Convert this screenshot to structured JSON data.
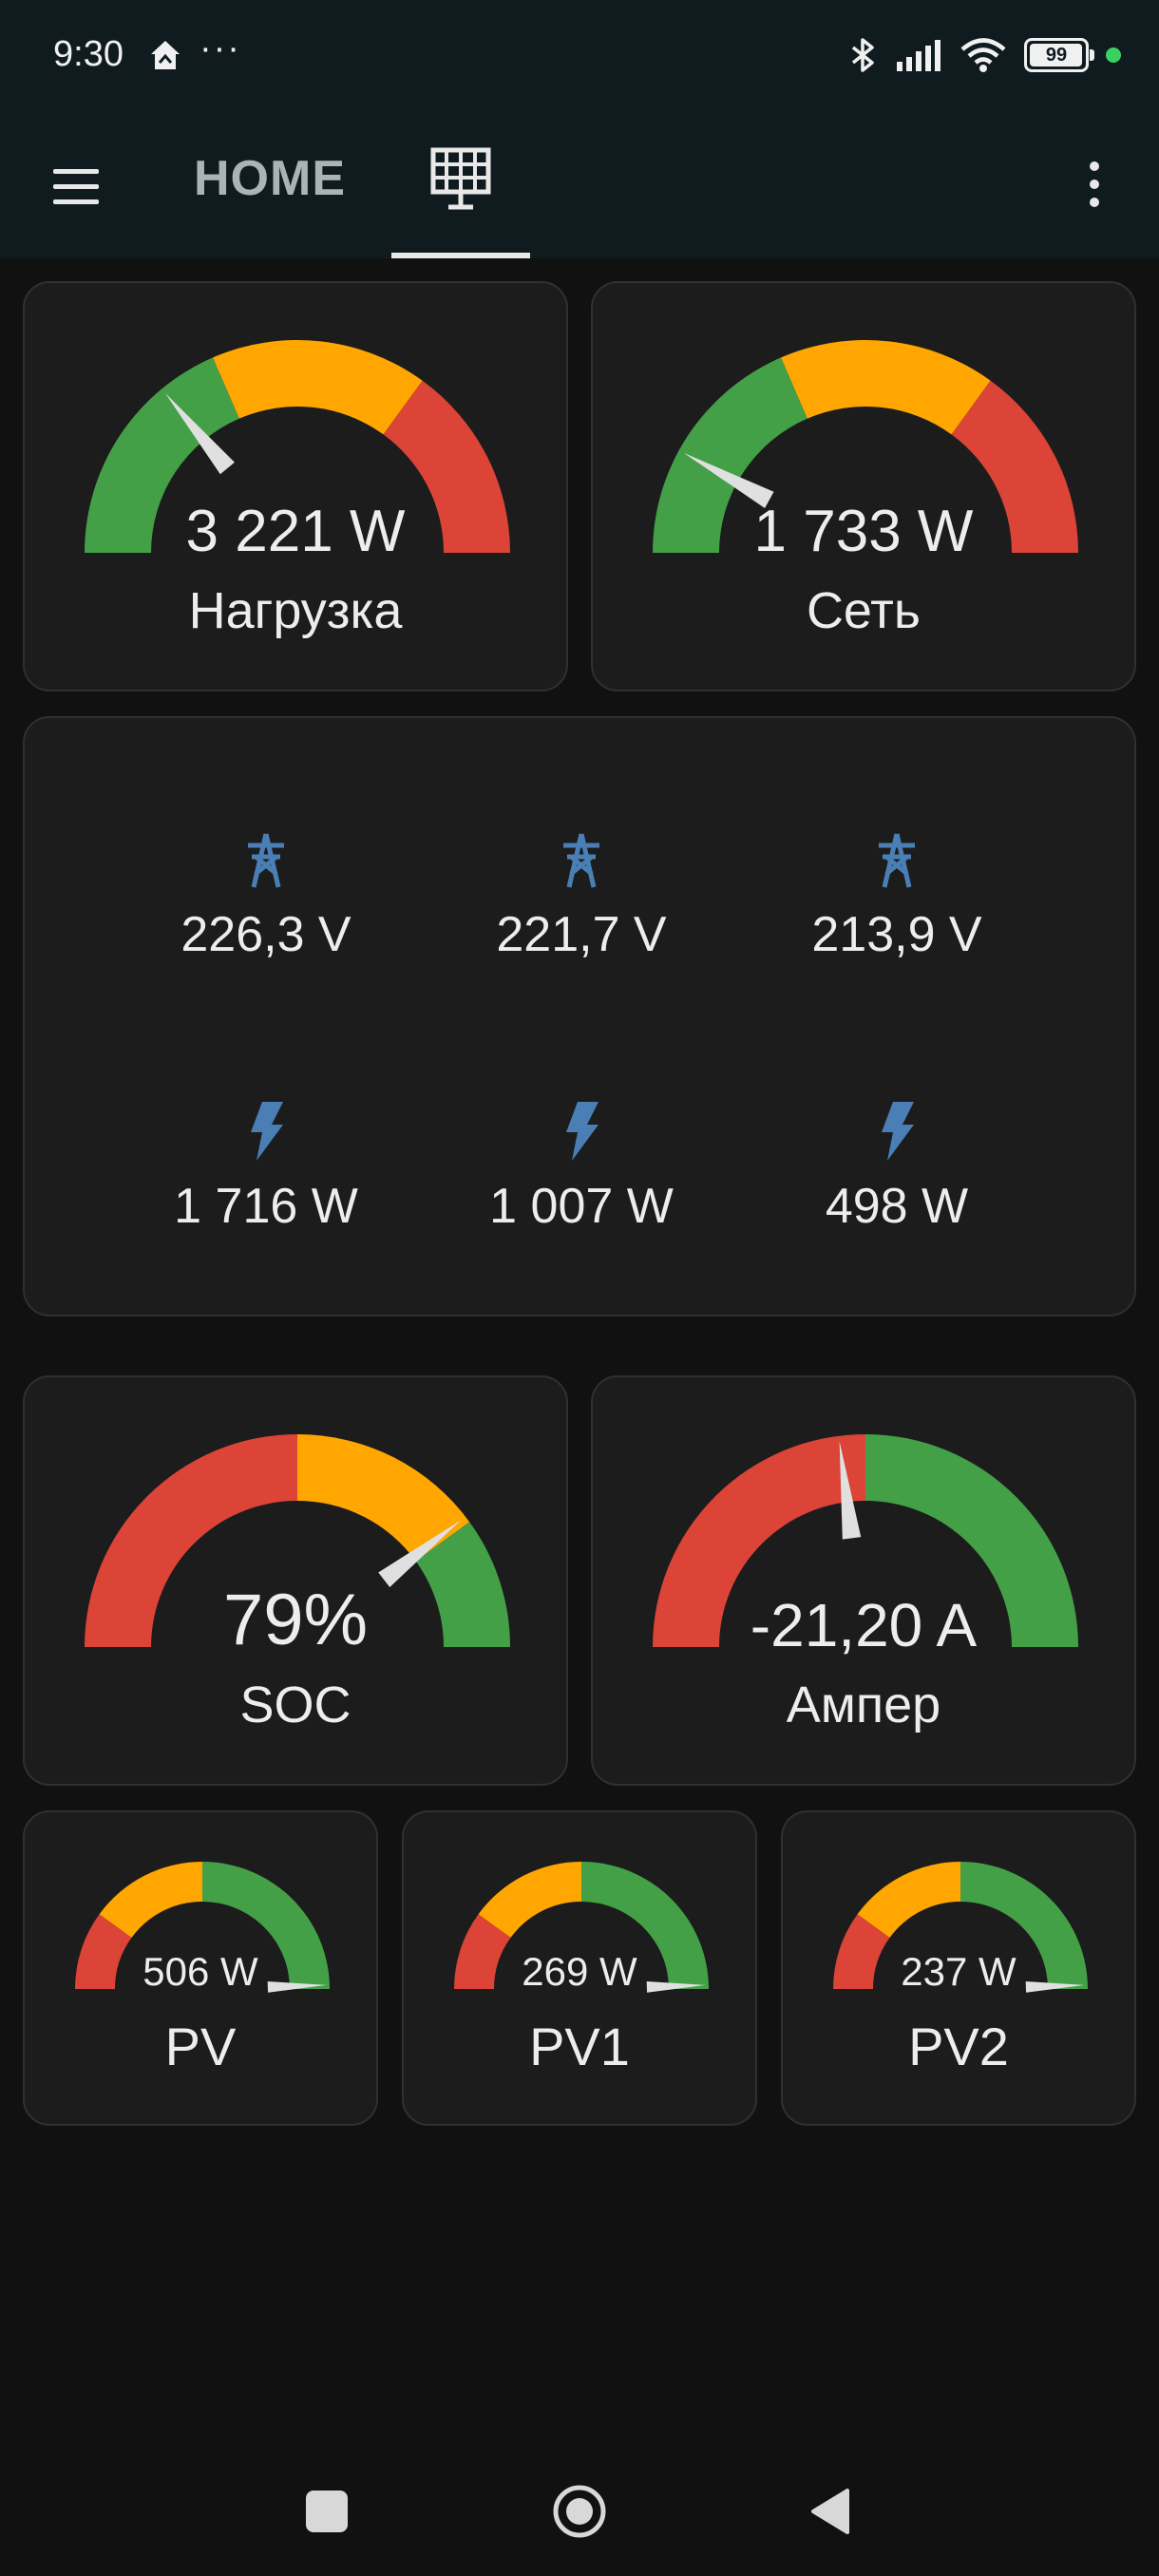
{
  "status_bar": {
    "time": "9:30",
    "overflow": "···",
    "battery": "99",
    "icons": [
      "home-app-icon",
      "bluetooth-icon",
      "signal-icon",
      "wifi-icon",
      "battery-icon",
      "privacy-dot-icon"
    ]
  },
  "app_bar": {
    "tab_home_label": "HOME",
    "tab_active_icon": "solar-panel-icon",
    "menu_icon": "hamburger-menu-icon",
    "more_icon": "more-vert-icon"
  },
  "colors": {
    "green": "#43a047",
    "orange": "#ffa600",
    "red": "#db4437",
    "needle": "#e0e0e0",
    "icon_blue": "#4a7fb5"
  },
  "gauges": {
    "load": {
      "value": "3 221 W",
      "label": "Нагрузка",
      "needle_fraction": 0.28,
      "segments": [
        [
          "green",
          0,
          0.37
        ],
        [
          "orange",
          0.37,
          0.7
        ],
        [
          "red",
          0.7,
          1
        ]
      ]
    },
    "grid": {
      "value": "1 733 W",
      "label": "Сеть",
      "needle_fraction": 0.16,
      "segments": [
        [
          "green",
          0,
          0.37
        ],
        [
          "orange",
          0.37,
          0.7
        ],
        [
          "red",
          0.7,
          1
        ]
      ]
    },
    "soc": {
      "value": "79%",
      "label": "SOC",
      "needle_fraction": 0.79,
      "segments": [
        [
          "red",
          0,
          0.5
        ],
        [
          "orange",
          0.5,
          0.8
        ],
        [
          "green",
          0.8,
          1
        ]
      ]
    },
    "amper": {
      "value": "-21,20 A",
      "label": "Ампер",
      "needle_fraction": 0.46,
      "segments": [
        [
          "red",
          0,
          0.5
        ],
        [
          "green",
          0.5,
          1
        ]
      ]
    },
    "pv": {
      "value": "506 W",
      "label": "PV",
      "needle_fraction": 0.99,
      "segments": [
        [
          "red",
          0,
          0.2
        ],
        [
          "orange",
          0.2,
          0.5
        ],
        [
          "green",
          0.5,
          1
        ]
      ]
    },
    "pv1": {
      "value": "269 W",
      "label": "PV1",
      "needle_fraction": 0.99,
      "segments": [
        [
          "red",
          0,
          0.2
        ],
        [
          "orange",
          0.2,
          0.5
        ],
        [
          "green",
          0.5,
          1
        ]
      ]
    },
    "pv2": {
      "value": "237 W",
      "label": "PV2",
      "needle_fraction": 0.99,
      "segments": [
        [
          "red",
          0,
          0.2
        ],
        [
          "orange",
          0.2,
          0.5
        ],
        [
          "green",
          0.5,
          1
        ]
      ]
    }
  },
  "phases": {
    "voltages": [
      "226,3 V",
      "221,7 V",
      "213,9 V"
    ],
    "powers": [
      "1 716 W",
      "1 007 W",
      "498 W"
    ],
    "voltage_icon": "transmission-tower-icon",
    "power_icon": "flash-icon"
  },
  "nav_bar": {
    "icons": [
      "recents-square-icon",
      "home-circle-icon",
      "back-triangle-icon"
    ]
  }
}
